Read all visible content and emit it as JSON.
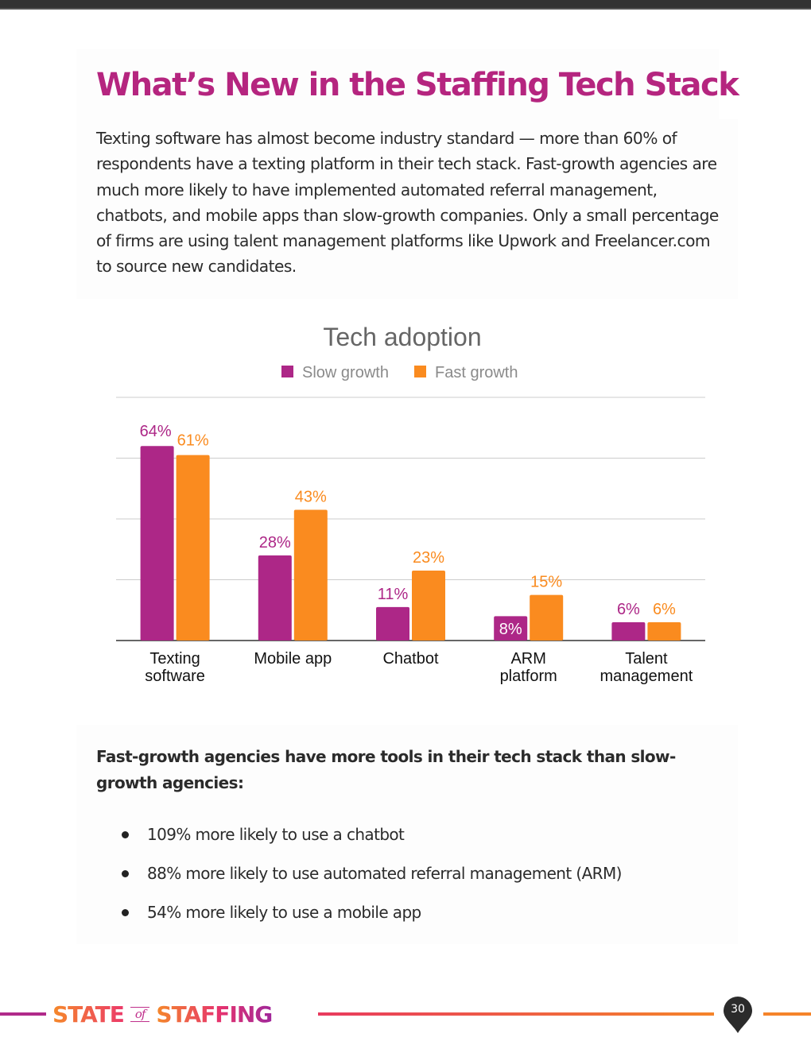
{
  "page": {
    "title": "What’s New in the Staffing Tech Stack",
    "intro": "Texting software has almost become industry standard — more than 60% of respondents have a texting platform in their tech stack. Fast-growth agencies are much more likely to have implemented automated referral management, chatbots, and mobile apps than slow-growth companies. Only a small percentage of firms are using talent management platforms like Upwork and Freelancer.com to source new candidates.",
    "subheading": "Fast-growth agencies have more tools in their tech stack than slow-growth agencies:",
    "bullets": [
      "109% more likely to use a chatbot",
      "88% more likely to use automated referral management (ARM)",
      "54% more likely to use a mobile app"
    ]
  },
  "footer": {
    "brand_word1": "STATE",
    "brand_of": "of",
    "brand_word2": "STAFFING",
    "page_number": "30"
  },
  "colors": {
    "title": "#b5257f",
    "slow": "#ad2787",
    "fast": "#fa8b1f",
    "grid": "#cccccc",
    "axis": "#333333"
  },
  "chart_data": {
    "type": "bar",
    "title": "Tech adoption",
    "xlabel": "",
    "ylabel": "",
    "ylim": [
      0,
      80
    ],
    "yticks": [
      0,
      20,
      40,
      60,
      80
    ],
    "grid": true,
    "y_tick_labels_shown": false,
    "legend_position": "top-center",
    "categories": [
      [
        "Texting",
        "software"
      ],
      [
        "Mobile app"
      ],
      [
        "Chatbot"
      ],
      [
        "ARM",
        "platform"
      ],
      [
        "Talent",
        "management"
      ]
    ],
    "series": [
      {
        "name": "Slow growth",
        "color": "#ad2787",
        "values": [
          64,
          28,
          11,
          8,
          6
        ],
        "labels": [
          "64%",
          "28%",
          "11%",
          "8%",
          "6%"
        ]
      },
      {
        "name": "Fast growth",
        "color": "#fa8b1f",
        "values": [
          61,
          43,
          23,
          15,
          6
        ],
        "labels": [
          "61%",
          "43%",
          "23%",
          "15%",
          "6%"
        ]
      }
    ]
  }
}
